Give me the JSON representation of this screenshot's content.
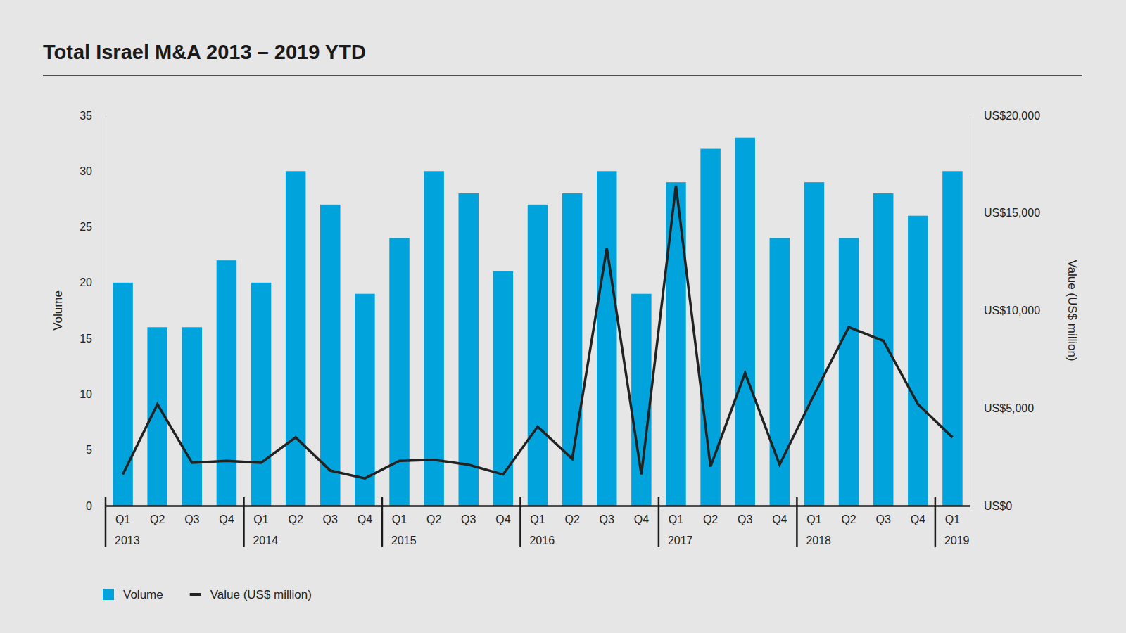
{
  "chart_data": {
    "type": "bar",
    "title": "Total Israel M&A 2013 – 2019 YTD",
    "categories": [
      "Q1",
      "Q2",
      "Q3",
      "Q4",
      "Q1",
      "Q2",
      "Q3",
      "Q4",
      "Q1",
      "Q2",
      "Q3",
      "Q4",
      "Q1",
      "Q2",
      "Q3",
      "Q4",
      "Q1",
      "Q2",
      "Q3",
      "Q4",
      "Q1",
      "Q2",
      "Q3",
      "Q4",
      "Q1"
    ],
    "years": [
      "2013",
      null,
      null,
      null,
      "2014",
      null,
      null,
      null,
      "2015",
      null,
      null,
      null,
      "2016",
      null,
      null,
      null,
      "2017",
      null,
      null,
      null,
      "2018",
      null,
      null,
      null,
      "2019"
    ],
    "y_label": "Volume",
    "y2_label": "Value (US$ million)",
    "ylim": [
      0,
      35
    ],
    "yticks": [
      0,
      5,
      10,
      15,
      20,
      25,
      30,
      35
    ],
    "y2lim": [
      0,
      20000
    ],
    "y2ticks": [
      {
        "value": 0,
        "label": "US$0"
      },
      {
        "value": 5000,
        "label": "US$5,000"
      },
      {
        "value": 10000,
        "label": "US$10,000"
      },
      {
        "value": 15000,
        "label": "US$15,000"
      },
      {
        "value": 20000,
        "label": "US$20,000"
      }
    ],
    "legend": "bottom-left",
    "series": [
      {
        "name": "Volume",
        "type": "bar",
        "color": "#00a3dc",
        "values": [
          20,
          16,
          16,
          22,
          20,
          30,
          27,
          19,
          24,
          30,
          28,
          21,
          27,
          28,
          30,
          19,
          29,
          32,
          33,
          24,
          29,
          24,
          28,
          26,
          30
        ]
      },
      {
        "name": "Value (US$ million)",
        "type": "line",
        "color": "#222222",
        "axis": "y2",
        "values": [
          1600,
          5200,
          2200,
          2300,
          2200,
          3500,
          1800,
          1400,
          2300,
          2350,
          2100,
          1600,
          4050,
          2400,
          13200,
          1600,
          16400,
          2000,
          6800,
          2100,
          5700,
          9150,
          8450,
          5200,
          3500
        ]
      }
    ]
  }
}
